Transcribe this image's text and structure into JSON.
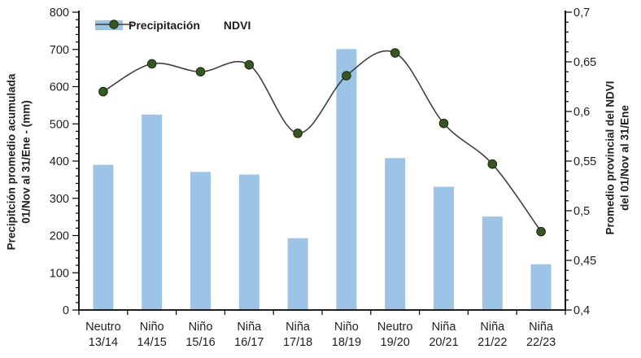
{
  "chart_data": {
    "type": "combo",
    "title": "",
    "categories": [
      [
        "Neutro",
        "13/14"
      ],
      [
        "Niño",
        "14/15"
      ],
      [
        "Niño",
        "15/16"
      ],
      [
        "Niña",
        "16/17"
      ],
      [
        "Niña",
        "17/18"
      ],
      [
        "Niño",
        "18/19"
      ],
      [
        "Neutro",
        "19/20"
      ],
      [
        "Niña",
        "20/21"
      ],
      [
        "Niña",
        "21/22"
      ],
      [
        "Niña",
        "22/23"
      ]
    ],
    "series": [
      {
        "name": "Precipitación",
        "type": "bar",
        "axis": "left",
        "color": "#9DC3E6",
        "values": [
          390,
          525,
          371,
          364,
          193,
          701,
          408,
          331,
          251,
          123
        ]
      },
      {
        "name": "NDVI",
        "type": "line",
        "axis": "right",
        "line_color": "#404040",
        "marker_color": "#375623",
        "marker_stroke": "#1a2a0d",
        "smooth": true,
        "values": [
          0.62,
          0.648,
          0.64,
          0.647,
          0.578,
          0.636,
          0.659,
          0.588,
          0.547,
          0.479
        ]
      }
    ],
    "left_axis": {
      "title_lines": [
        "Precipitción promedio acumulada",
        "01/Nov al 31/Ene - (mm)"
      ],
      "min": 0,
      "max": 800,
      "major": 100,
      "minor": 20,
      "tick_labels": [
        "0",
        "100",
        "200",
        "300",
        "400",
        "500",
        "600",
        "700",
        "800"
      ]
    },
    "right_axis": {
      "title_lines": [
        "Promedio provincial del NDVI",
        "del 01/Nov al 31/Ene"
      ],
      "min": 0.4,
      "max": 0.7,
      "major": 0.05,
      "minor": 0.01,
      "tick_labels": [
        "0,4",
        "0,45",
        "0,5",
        "0,55",
        "0,6",
        "0,65",
        "0,7"
      ]
    },
    "legend": {
      "position": "top-inside",
      "entries": [
        "Precipitación",
        "NDVI"
      ]
    },
    "grid": false,
    "axis_color": "#000000",
    "text_color": "#1f1f1f"
  }
}
